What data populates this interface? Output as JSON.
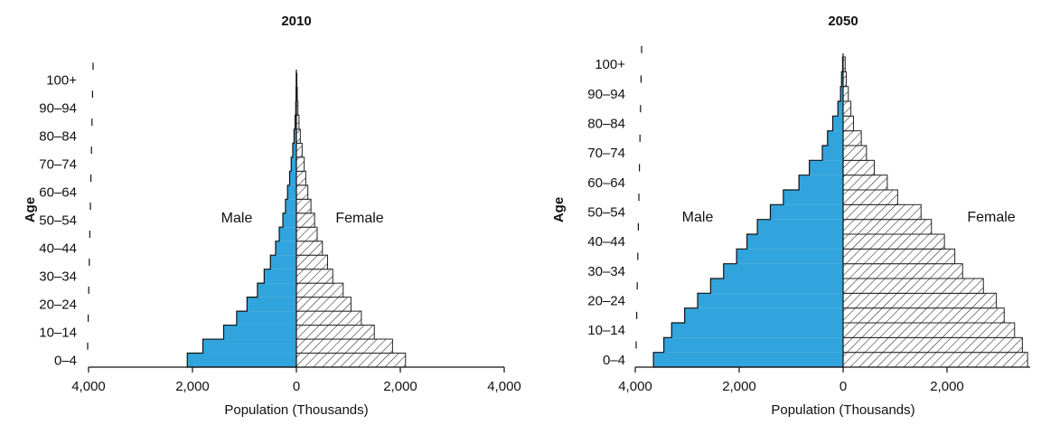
{
  "chart_data": [
    {
      "type": "bar",
      "orientation": "horizontal",
      "title": "2010",
      "xlabel": "Population (Thousands)",
      "ylabel": "Age",
      "xlim": [
        -4000,
        4000
      ],
      "x_ticks": [
        -4000,
        -2000,
        0,
        2000,
        4000
      ],
      "x_tick_labels": [
        "4,000",
        "2,000",
        "0",
        "2,000",
        "4,000"
      ],
      "y_tick_labels": [
        "0–4",
        "10–14",
        "20–24",
        "30–34",
        "40–44",
        "50–54",
        "60–64",
        "70–74",
        "80–84",
        "90–94",
        "100+"
      ],
      "grid": false,
      "series": [
        {
          "name": "Male",
          "fill": "#31a4dd",
          "values": [
            2100,
            1800,
            1400,
            1150,
            950,
            750,
            620,
            500,
            400,
            330,
            260,
            210,
            170,
            130,
            100,
            70,
            45,
            25,
            12,
            6,
            2
          ]
        },
        {
          "name": "Female",
          "fill": "hatch",
          "values": [
            2100,
            1850,
            1500,
            1250,
            1050,
            900,
            700,
            600,
            500,
            400,
            350,
            280,
            220,
            180,
            150,
            110,
            75,
            50,
            30,
            18,
            10
          ]
        }
      ]
    },
    {
      "type": "bar",
      "orientation": "horizontal",
      "title": "2050",
      "xlabel": "Population (Thousands)",
      "ylabel": "Age",
      "xlim": [
        -4000,
        3600
      ],
      "x_ticks": [
        -4000,
        -2000,
        0,
        2000
      ],
      "x_tick_labels": [
        "4,000",
        "2,000",
        "0",
        "2,000"
      ],
      "y_tick_labels": [
        "0–4",
        "10–14",
        "20–24",
        "30–34",
        "40–44",
        "50–54",
        "60–64",
        "70–74",
        "80–84",
        "90–94",
        "100+"
      ],
      "grid": false,
      "series": [
        {
          "name": "Male",
          "fill": "#31a4dd",
          "values": [
            3650,
            3450,
            3300,
            3050,
            2800,
            2550,
            2300,
            2050,
            1850,
            1650,
            1400,
            1150,
            850,
            650,
            400,
            300,
            200,
            100,
            50,
            30,
            10
          ]
        },
        {
          "name": "Female",
          "fill": "hatch",
          "values": [
            3550,
            3450,
            3300,
            3100,
            2950,
            2700,
            2300,
            2150,
            1950,
            1700,
            1500,
            1050,
            850,
            600,
            450,
            350,
            200,
            150,
            100,
            60,
            40
          ]
        }
      ]
    }
  ]
}
